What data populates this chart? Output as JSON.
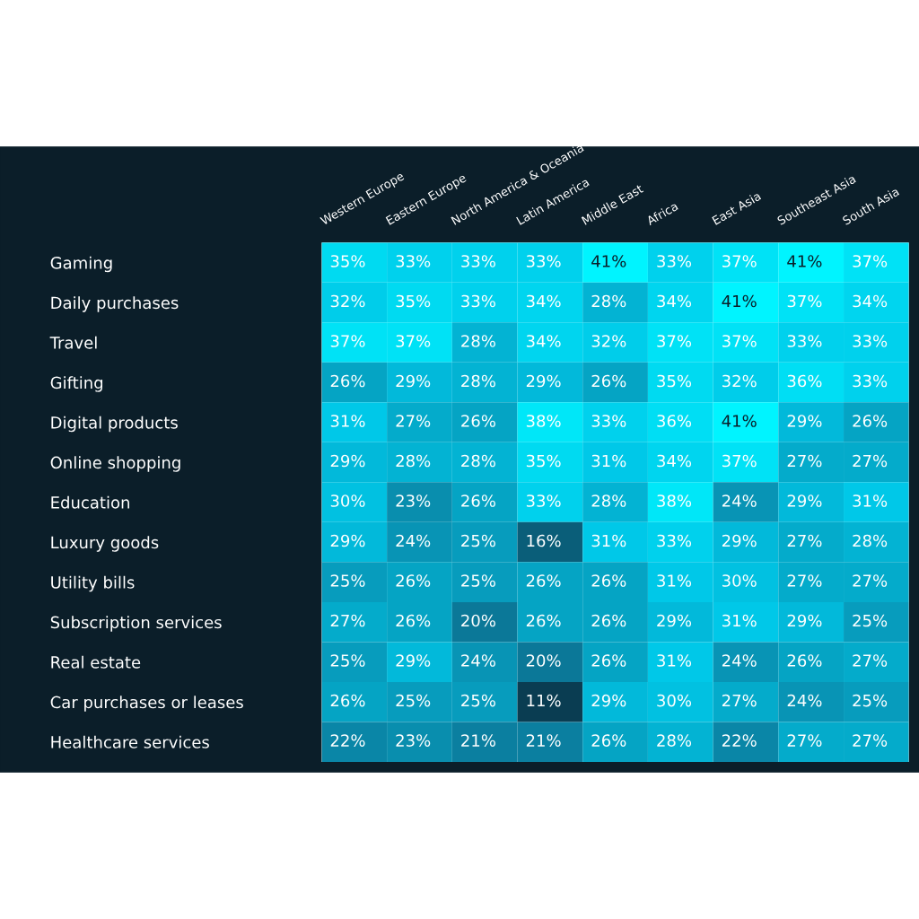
{
  "chart_data": {
    "type": "heatmap",
    "categories": [
      "Western Europe",
      "Eastern Europe",
      "North America & Oceania",
      "Latin America",
      "Middle East",
      "Africa",
      "East Asia",
      "Southeast Asia",
      "South Asia"
    ],
    "y_categories": [
      "Gaming",
      "Daily purchases",
      "Travel",
      "Gifting",
      "Digital products",
      "Online shopping",
      "Education",
      "Luxury goods",
      "Utility bills",
      "Subscription services",
      "Real estate",
      "Car purchases or leases",
      "Healthcare services"
    ],
    "cells": [
      [
        35,
        33,
        33,
        33,
        41,
        33,
        37,
        41,
        37
      ],
      [
        32,
        35,
        33,
        34,
        28,
        34,
        41,
        37,
        34
      ],
      [
        37,
        37,
        28,
        34,
        32,
        37,
        37,
        33,
        33
      ],
      [
        26,
        29,
        28,
        29,
        26,
        35,
        32,
        36,
        33
      ],
      [
        31,
        27,
        26,
        38,
        33,
        36,
        41,
        29,
        26
      ],
      [
        29,
        28,
        28,
        35,
        31,
        34,
        37,
        27,
        27
      ],
      [
        30,
        23,
        26,
        33,
        28,
        38,
        24,
        29,
        31
      ],
      [
        29,
        24,
        25,
        16,
        31,
        33,
        29,
        27,
        28
      ],
      [
        25,
        26,
        25,
        26,
        26,
        31,
        30,
        27,
        27
      ],
      [
        27,
        26,
        20,
        26,
        26,
        29,
        31,
        29,
        25
      ],
      [
        25,
        29,
        24,
        20,
        26,
        31,
        24,
        26,
        27
      ],
      [
        26,
        25,
        25,
        11,
        29,
        30,
        27,
        24,
        25
      ],
      [
        22,
        23,
        21,
        21,
        26,
        28,
        22,
        27,
        27
      ]
    ],
    "cell_labels": [
      [
        "35%",
        "33%",
        "33%",
        "33%",
        "41%",
        "33%",
        "37%",
        "41%",
        "37%"
      ],
      [
        "32%",
        "35%",
        "33%",
        "34%",
        "28%",
        "34%",
        "41%",
        "37%",
        "34%"
      ],
      [
        "37%",
        "37%",
        "28%",
        "34%",
        "32%",
        "37%",
        "37%",
        "33%",
        "33%"
      ],
      [
        "26%",
        "29%",
        "28%",
        "29%",
        "26%",
        "35%",
        "32%",
        "36%",
        "33%"
      ],
      [
        "31%",
        "27%",
        "26%",
        "38%",
        "33%",
        "36%",
        "41%",
        "29%",
        "26%"
      ],
      [
        "29%",
        "28%",
        "28%",
        "35%",
        "31%",
        "34%",
        "37%",
        "27%",
        "27%"
      ],
      [
        "30%",
        "23%",
        "26%",
        "33%",
        "28%",
        "38%",
        "24%",
        "29%",
        "31%"
      ],
      [
        "29%",
        "24%",
        "25%",
        "16%",
        "31%",
        "33%",
        "29%",
        "27%",
        "28%"
      ],
      [
        "25%",
        "26%",
        "25%",
        "26%",
        "26%",
        "31%",
        "30%",
        "27%",
        "27%"
      ],
      [
        "27%",
        "26%",
        "20%",
        "26%",
        "26%",
        "29%",
        "31%",
        "29%",
        "25%"
      ],
      [
        "25%",
        "29%",
        "24%",
        "20%",
        "26%",
        "31%",
        "24%",
        "26%",
        "27%"
      ],
      [
        "26%",
        "25%",
        "25%",
        "11%",
        "29%",
        "30%",
        "27%",
        "24%",
        "25%"
      ],
      [
        "22%",
        "23%",
        "21%",
        "21%",
        "26%",
        "28%",
        "22%",
        "27%",
        "27%"
      ]
    ]
  }
}
